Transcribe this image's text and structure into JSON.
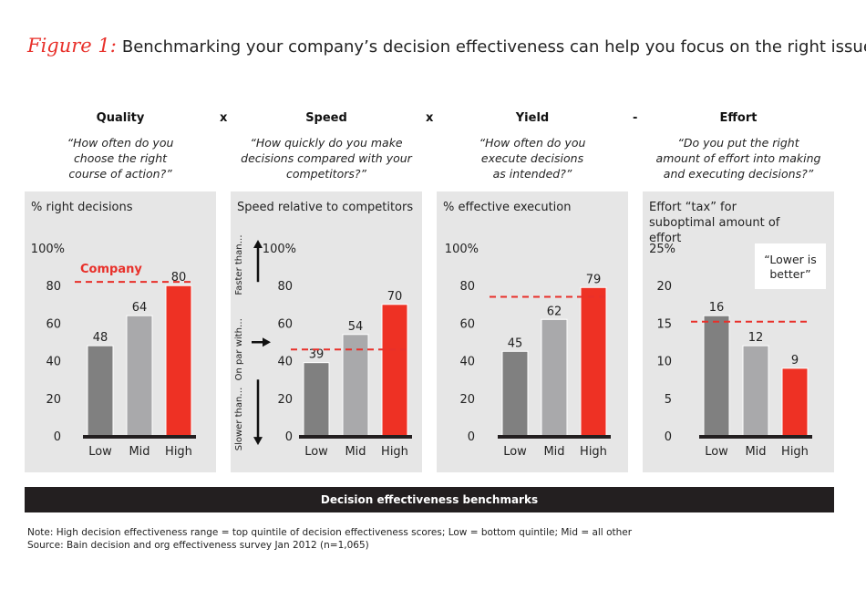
{
  "figure_label": "Figure 1:",
  "title": "Benchmarking your company’s decision effectiveness can help you focus on the right issues",
  "operators": [
    "x",
    "x",
    "-"
  ],
  "banner": "Decision effectiveness benchmarks",
  "notes": [
    "Note: High decision effectiveness range = top quintile of decision effectiveness scores; Low = bottom quintile; Mid = all other",
    "Source: Bain decision and org effectiveness survey Jan 2012 (n=1,065)"
  ],
  "colors": {
    "low": "#808080",
    "mid": "#a9a9ab",
    "high": "#ee3124",
    "reference_line": "#e8302a",
    "panel_bg": "#e6e6e6"
  },
  "chart_data": [
    {
      "type": "bar",
      "metric": "Quality",
      "question": "“How often do you choose the right course of action?”",
      "ylabel": "% right decisions",
      "categories": [
        "Low",
        "Mid",
        "High"
      ],
      "values": [
        48,
        64,
        80
      ],
      "ylim": [
        0,
        100
      ],
      "yticks": [
        "0",
        "20",
        "40",
        "60",
        "80",
        "100%"
      ],
      "reference": {
        "value": 82,
        "label": "Company"
      }
    },
    {
      "type": "bar",
      "metric": "Speed",
      "question": "“How quickly do you make decisions compared with your competitors?”",
      "ylabel": "Speed relative to competitors",
      "categories": [
        "Low",
        "Mid",
        "High"
      ],
      "values": [
        39,
        54,
        70
      ],
      "ylim": [
        0,
        100
      ],
      "yticks": [
        "0",
        "20",
        "40",
        "60",
        "80",
        "100%"
      ],
      "reference": {
        "value": 46,
        "label": ""
      },
      "side_labels": [
        "Faster than…",
        "On par with…",
        "Slower than…"
      ]
    },
    {
      "type": "bar",
      "metric": "Yield",
      "question": "“How often do you execute decisions as intended?”",
      "ylabel": "% effective execution",
      "categories": [
        "Low",
        "Mid",
        "High"
      ],
      "values": [
        45,
        62,
        79
      ],
      "ylim": [
        0,
        100
      ],
      "yticks": [
        "0",
        "20",
        "40",
        "60",
        "80",
        "100%"
      ],
      "reference": {
        "value": 74,
        "label": ""
      }
    },
    {
      "type": "bar",
      "metric": "Effort",
      "question": "“Do you put the right amount of effort into making and executing decisions?”",
      "ylabel": "Effort “tax” for suboptimal amount of effort",
      "categories": [
        "Low",
        "Mid",
        "High"
      ],
      "values": [
        16,
        12,
        9
      ],
      "ylim": [
        0,
        25
      ],
      "yticks": [
        "0",
        "5",
        "10",
        "15",
        "20",
        "25%"
      ],
      "reference": {
        "value": 15.2,
        "label": ""
      },
      "annotation": "“Lower is better”"
    }
  ]
}
